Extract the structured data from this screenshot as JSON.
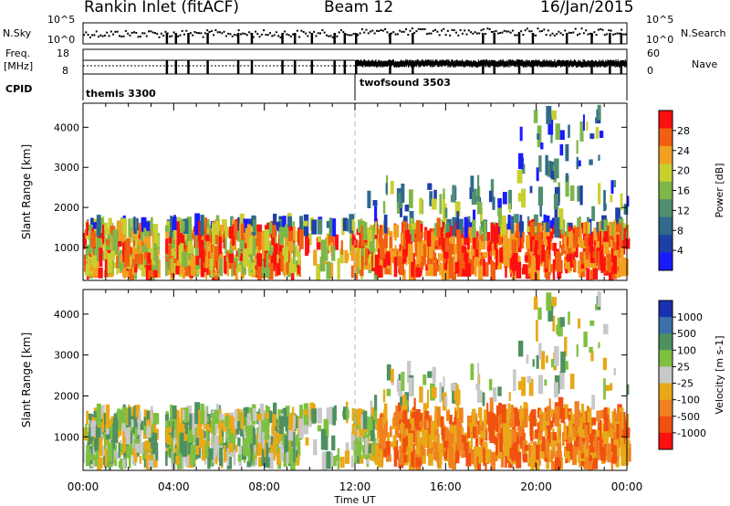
{
  "header": {
    "title": "Rankin Inlet (fitACF)",
    "beam": "Beam 12",
    "date": "16/Jan/2015"
  },
  "nsky": {
    "left_label": "N.Sky",
    "left_ticks": [
      "10^5",
      "10^0"
    ],
    "right_label": "N.Search",
    "right_ticks": [
      "10^5",
      "10^0"
    ]
  },
  "freq": {
    "left_label_1": "Freq.",
    "left_label_2": "[MHz]",
    "left_ticks": [
      "18",
      "8"
    ],
    "right_label": "Nave",
    "right_ticks": [
      "60",
      "0"
    ]
  },
  "cpid": {
    "label": "CPID",
    "modes": [
      {
        "name": "themis 3300",
        "start_hour": 0
      },
      {
        "name": "twofsound 3503",
        "start_hour": 12
      }
    ]
  },
  "colors": {
    "power_scale": [
      "#1a1aff",
      "#1f3fa8",
      "#2f6a8a",
      "#4f8f6f",
      "#7fb64a",
      "#c8d030",
      "#f2a020",
      "#f06010",
      "#ff1010"
    ],
    "velocity_scale": [
      "#1a2fb0",
      "#3c70a8",
      "#4f9060",
      "#7fc040",
      "#c8c8c8",
      "#e8a818",
      "#f08020",
      "#f05010",
      "#ff1010"
    ]
  },
  "chart_data": [
    {
      "type": "heatmap",
      "name": "power",
      "ylabel": "Slant Range [km]",
      "x_range_hours": [
        0,
        24
      ],
      "ylim": [
        180,
        4600
      ],
      "yticks": [
        1000,
        2000,
        3000,
        4000
      ],
      "colorbar": {
        "label": "Power [dB]",
        "tick_labels": [
          "28",
          "24",
          "20",
          "16",
          "12",
          "8",
          "4"
        ],
        "range": [
          0,
          32
        ]
      }
    },
    {
      "type": "heatmap",
      "name": "velocity",
      "ylabel": "Slant Range [km]",
      "xlabel": "Time UT",
      "x_range_hours": [
        0,
        24
      ],
      "xtick_labels": [
        "00:00",
        "04:00",
        "08:00",
        "12:00",
        "16:00",
        "20:00",
        "00:00"
      ],
      "ylim": [
        180,
        4600
      ],
      "yticks": [
        1000,
        2000,
        3000,
        4000
      ],
      "colorbar": {
        "label": "Velocity [m s-1]",
        "tick_labels": [
          "1000",
          "500",
          "100",
          "25",
          "-25",
          "-100",
          "-500",
          "-1000"
        ]
      }
    }
  ]
}
